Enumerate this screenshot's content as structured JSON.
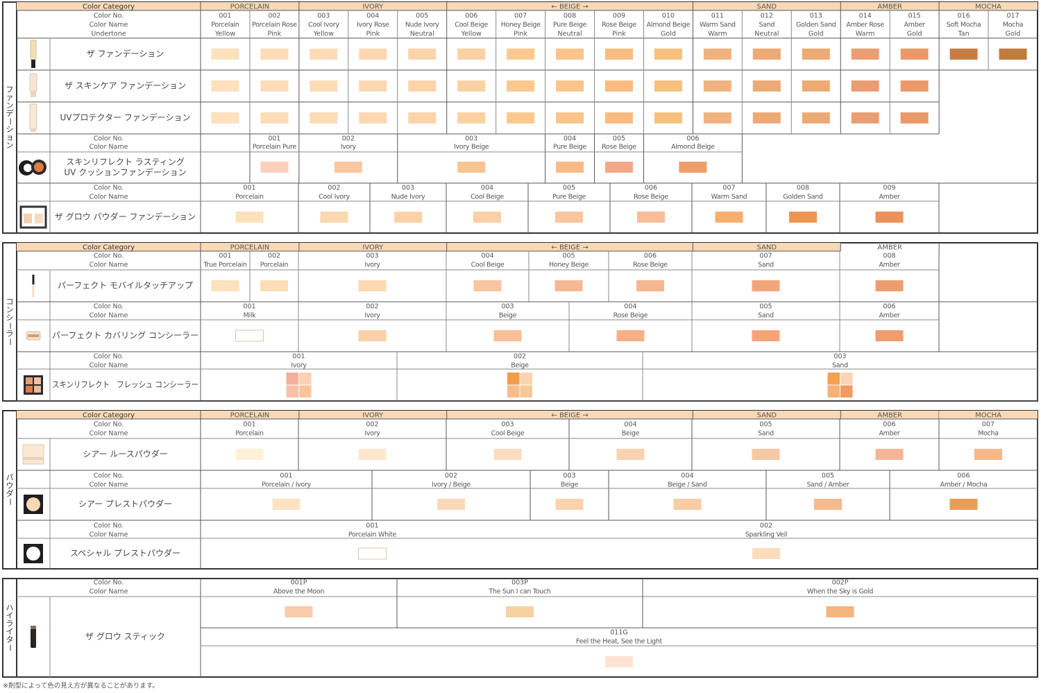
{
  "colors": {
    "frame": "#333333",
    "hair": "#9a9a9a",
    "category_fill": "#f7d9b8",
    "empty_swatch_border": "#d9c9a0"
  },
  "labels": {
    "color_category": "Color Category",
    "color_no": "Color No.",
    "color_name": "Color Name",
    "undertone": "Undertone",
    "beige_arrows": "←  BEIGE  →"
  },
  "footnote": "※剤型によって色の見え方が異なることがあります。",
  "sections": [
    {
      "id": "foundation",
      "label": "ファンデーション",
      "categories": [
        {
          "name": "PORCELAIN",
          "cols": 2
        },
        {
          "name": "IVORY",
          "cols": 3
        },
        {
          "name": "BEIGE",
          "cols": 5
        },
        {
          "name": "SAND",
          "cols": 3
        },
        {
          "name": "AMBER",
          "cols": 2
        },
        {
          "name": "MOCHA",
          "cols": 2
        }
      ],
      "shades": [
        {
          "no": "001",
          "name": "Porcelain",
          "undertone": "Yellow"
        },
        {
          "no": "002",
          "name": "Porcelain Rose",
          "undertone": "Pink"
        },
        {
          "no": "003",
          "name": "Cool Ivory",
          "undertone": "Yellow"
        },
        {
          "no": "004",
          "name": "Ivory Rose",
          "undertone": "Pink"
        },
        {
          "no": "005",
          "name": "Nude Ivory",
          "undertone": "Neutral"
        },
        {
          "no": "006",
          "name": "Cool Beige",
          "undertone": "Yellow"
        },
        {
          "no": "007",
          "name": "Honey Beige",
          "undertone": "Pink"
        },
        {
          "no": "008",
          "name": "Pure Beige",
          "undertone": "Neutral"
        },
        {
          "no": "009",
          "name": "Rose Beige",
          "undertone": "Pink"
        },
        {
          "no": "010",
          "name": "Almond Beige",
          "undertone": "Gold"
        },
        {
          "no": "011",
          "name": "Warm Sand",
          "undertone": "Warm"
        },
        {
          "no": "012",
          "name": "Sand",
          "undertone": "Neutral"
        },
        {
          "no": "013",
          "name": "Golden Sand",
          "undertone": "Gold"
        },
        {
          "no": "014",
          "name": "Amber Rose",
          "undertone": "Warm"
        },
        {
          "no": "015",
          "name": "Amber",
          "undertone": "Gold"
        },
        {
          "no": "016",
          "name": "Soft Mocha",
          "undertone": "Tan"
        },
        {
          "no": "017",
          "name": "Mocha",
          "undertone": "Gold"
        }
      ],
      "products": [
        {
          "name": "ザ ファンデーション",
          "icon": "foundation-bottle-icon",
          "swatches": [
            "#fde0bc",
            "#fddcb8",
            "#fcdcb6",
            "#fcd8b2",
            "#fbd4aa",
            "#fbd0a2",
            "#fbc890",
            "#fac48a",
            "#f8bc80",
            "#f8c07e",
            "#f0b37f",
            "#edaa76",
            "#eeaa74",
            "#eb9e72",
            "#eb9968",
            "#c87d44",
            "#c07c3c"
          ]
        },
        {
          "name": "ザ スキンケア ファンデーション",
          "icon": "skincare-bottle-icon",
          "swatches": [
            "#fde0bc",
            "#fddcb8",
            "#fcdcb6",
            "#fcd8b2",
            "#fbd4aa",
            "#fbd0a2",
            "#fbc890",
            "#fac48a",
            "#f8bc80",
            "#f8c07e",
            "#f0b37f",
            "#edaa76",
            "#eeaa74",
            "#eb9e72",
            "#eb9968"
          ]
        },
        {
          "name": "UVプロテクター ファンデーション",
          "icon": "uv-protector-tube-icon",
          "swatches": [
            "#fde0bc",
            "#fddcb8",
            "#fcdcb6",
            "#fcd8b2",
            "#fbd4aa",
            "#fbd0a2",
            "#fbc890",
            "#fac48a",
            "#f8bc80",
            "#f8c07e",
            "#f0b37f",
            "#edaa76",
            "#eeaa74",
            "#eb9e72",
            "#eb9968"
          ]
        }
      ],
      "cushion": {
        "name_lines": [
          "スキンリフレクト ラスティング",
          "UV クッションファンデーション"
        ],
        "icon": "cushion-compact-icon",
        "shades": [
          {
            "no": "001",
            "name": "Porcelain Pure",
            "swatch": "#fdd0bc"
          },
          {
            "no": "002",
            "name": "Ivory",
            "swatch": "#fbc6a0"
          },
          {
            "no": "003",
            "name": "Ivory Beige",
            "swatch": "#fac490"
          },
          {
            "no": "004",
            "name": "Pure Beige",
            "swatch": "#f8bb88"
          },
          {
            "no": "005",
            "name": "Rose Beige",
            "swatch": "#f2a98a"
          },
          {
            "no": "006",
            "name": "Almond Beige",
            "swatch": "#ee9e6a"
          }
        ]
      },
      "powder_foundation": {
        "name": "ザ グロウ パウダー ファンデーション",
        "icon": "powder-compact-icon",
        "shades": [
          {
            "no": "001",
            "name": "Porcelain",
            "swatch": "#fde0bc"
          },
          {
            "no": "002",
            "name": "Cool Ivory",
            "swatch": "#fcd8b0"
          },
          {
            "no": "003",
            "name": "Nude Ivory",
            "swatch": "#fbd2a8"
          },
          {
            "no": "004",
            "name": "Cool Beige",
            "swatch": "#fbd0a6"
          },
          {
            "no": "005",
            "name": "Pure Beige",
            "swatch": "#fac69e"
          },
          {
            "no": "006",
            "name": "Rose Beige",
            "swatch": "#f8be98"
          },
          {
            "no": "007",
            "name": "Warm Sand",
            "swatch": "#f5b070"
          },
          {
            "no": "008",
            "name": "Golden Sand",
            "swatch": "#ec9654"
          },
          {
            "no": "009",
            "name": "Amber",
            "swatch": "#e9925c"
          }
        ]
      }
    },
    {
      "id": "concealer",
      "label": "コンシーラー",
      "categories": [
        {
          "name": "PORCELAIN"
        },
        {
          "name": "IVORY"
        },
        {
          "name": "BEIGE"
        },
        {
          "name": "SAND"
        },
        {
          "name": "AMBER"
        }
      ],
      "products": [
        {
          "name": "パーフェクト モバイルタッチアップ",
          "icon": "concealer-pencil-icon",
          "shades": [
            {
              "no": "001",
              "name": "True Porcelain",
              "swatch": "#fde0bc"
            },
            {
              "no": "002",
              "name": "Porcelain",
              "swatch": "#fddcb8"
            },
            {
              "no": "003",
              "name": "Ivory",
              "swatch": "#fcd8b2"
            },
            {
              "no": "004",
              "name": "Cool Beige",
              "swatch": "#f9c4a0"
            },
            {
              "no": "005",
              "name": "Honey Beige",
              "swatch": "#f6b894"
            },
            {
              "no": "006",
              "name": "Rose Beige",
              "swatch": "#f5b690"
            },
            {
              "no": "007",
              "name": "Sand",
              "swatch": "#f4a47a"
            },
            {
              "no": "008",
              "name": "Amber",
              "swatch": "#ee9e6e"
            }
          ]
        },
        {
          "name": "パーフェクト カバリング コンシーラー",
          "icon": "concealer-jar-icon",
          "shades": [
            {
              "no": "001",
              "name": "Milk",
              "swatch": "#ffffff"
            },
            {
              "no": "002",
              "name": "Ivory",
              "swatch": "#fbcfa8"
            },
            {
              "no": "003",
              "name": "Beige",
              "swatch": "#f8bf98"
            },
            {
              "no": "004",
              "name": "Rose Beige",
              "swatch": "#f6b088"
            },
            {
              "no": "005",
              "name": "Sand",
              "swatch": "#f5a47a"
            },
            {
              "no": "006",
              "name": "Amber",
              "swatch": "#ee9e6e"
            }
          ]
        },
        {
          "name": "スキンリフレクト　フレッシュ コンシーラー",
          "icon": "concealer-palette-icon",
          "shades": [
            {
              "no": "001",
              "name": "Ivory",
              "quad": [
                "#f5b09a",
                "#fbd0b4",
                "#f8c0a4",
                "#f9c498"
              ]
            },
            {
              "no": "002",
              "name": "Beige",
              "quad": [
                "#f39c4a",
                "#fad4b0",
                "#f6bc8e",
                "#f8c898"
              ]
            },
            {
              "no": "003",
              "name": "Sand",
              "quad": [
                "#f3a050",
                "#fad4b4",
                "#f6b078",
                "#f39a5c"
              ]
            }
          ]
        }
      ]
    },
    {
      "id": "powder",
      "label": "パウダー",
      "categories": [
        {
          "name": "PORCELAIN"
        },
        {
          "name": "IVORY"
        },
        {
          "name": "BEIGE"
        },
        {
          "name": "SAND"
        },
        {
          "name": "AMBER"
        },
        {
          "name": "MOCHA"
        }
      ],
      "products": [
        {
          "name": "シアー ルースパウダー",
          "icon": "loose-powder-jar-icon",
          "shades": [
            {
              "no": "001",
              "name": "Porcelain",
              "swatch": "#fff0d8"
            },
            {
              "no": "002",
              "name": "Ivory",
              "swatch": "#fde8cc"
            },
            {
              "no": "003",
              "name": "Cool Beige",
              "swatch": "#fbdcc0"
            },
            {
              "no": "004",
              "name": "Beige",
              "swatch": "#f9d2b0"
            },
            {
              "no": "005",
              "name": "Sand",
              "swatch": "#f7c8a4"
            },
            {
              "no": "006",
              "name": "Amber",
              "swatch": "#f4b696"
            },
            {
              "no": "007",
              "name": "Mocha",
              "swatch": "#f6b888"
            }
          ]
        },
        {
          "name": "シアー プレストパウダー",
          "icon": "pressed-powder-compact-icon",
          "shades": [
            {
              "no": "001",
              "name": "Porcelain / Ivory",
              "swatch": "#fde2c4"
            },
            {
              "no": "002",
              "name": "Ivory / Beige",
              "swatch": "#fbd8b8"
            },
            {
              "no": "003",
              "name": "Beige",
              "swatch": "#fad2ac"
            },
            {
              "no": "004",
              "name": "Beige / Sand",
              "swatch": "#f8cca4"
            },
            {
              "no": "005",
              "name": "Sand / Amber",
              "swatch": "#f6ba8c"
            },
            {
              "no": "006",
              "name": "Amber / Mocha",
              "swatch": "#ea9c58"
            }
          ]
        },
        {
          "name": "スペシャル プレストパウダー",
          "icon": "special-powder-compact-icon",
          "shades": [
            {
              "no": "001",
              "name": "Porcelain White",
              "swatch": "#ffffff"
            },
            {
              "no": "002",
              "name": "Sparkling Veil",
              "swatch": "#fcdcbc"
            }
          ]
        }
      ]
    },
    {
      "id": "highlighter",
      "label": "ハイライター",
      "products": [
        {
          "name": "ザ グロウ スティック",
          "icon": "highlighter-stick-icon",
          "shades": [
            {
              "no": "001P",
              "name": "Above the Moon",
              "swatch": "#f9cbaa"
            },
            {
              "no": "003P",
              "name": "The Sun I can Touch",
              "swatch": "#f6d1a2"
            },
            {
              "no": "002P",
              "name": "When the Sky is Gold",
              "swatch": "#f6b47e"
            },
            {
              "no": "011G",
              "name": "Feel the Heat, See the Light",
              "swatch": "#fde4d2"
            }
          ]
        }
      ]
    }
  ]
}
